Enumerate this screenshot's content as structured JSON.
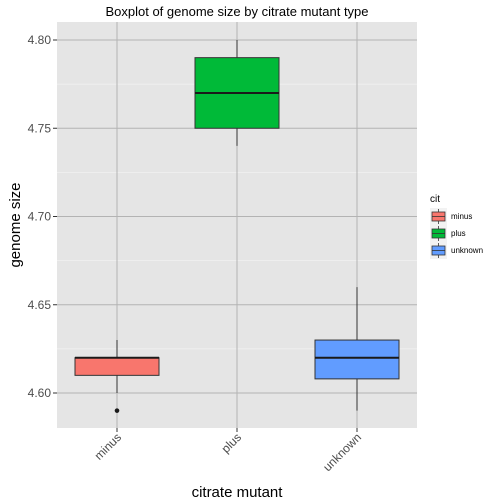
{
  "chart_data": {
    "type": "boxplot",
    "title": "Boxplot of genome size by citrate mutant type",
    "xlabel": "citrate mutant",
    "ylabel": "genome size",
    "categories": [
      "minus",
      "plus",
      "unknown"
    ],
    "ylim": [
      4.58,
      4.81
    ],
    "y_ticks": [
      "4.60",
      "4.65",
      "4.70",
      "4.75",
      "4.80"
    ],
    "boxes": [
      {
        "category": "minus",
        "whisker_low": 4.6,
        "q1": 4.61,
        "median": 4.62,
        "q3": 4.62,
        "whisker_high": 4.63,
        "outliers": [
          4.59
        ],
        "color": "#F8766D"
      },
      {
        "category": "plus",
        "whisker_low": 4.74,
        "q1": 4.75,
        "median": 4.77,
        "q3": 4.79,
        "whisker_high": 4.8,
        "outliers": [],
        "color": "#00BA38"
      },
      {
        "category": "unknown",
        "whisker_low": 4.59,
        "q1": 4.608,
        "median": 4.62,
        "q3": 4.63,
        "whisker_high": 4.66,
        "outliers": [],
        "color": "#619CFF"
      }
    ],
    "legend": {
      "title": "cit",
      "position": "right",
      "entries": [
        "minus",
        "plus",
        "unknown"
      ]
    },
    "grid": true,
    "background": "#e5e5e5"
  }
}
